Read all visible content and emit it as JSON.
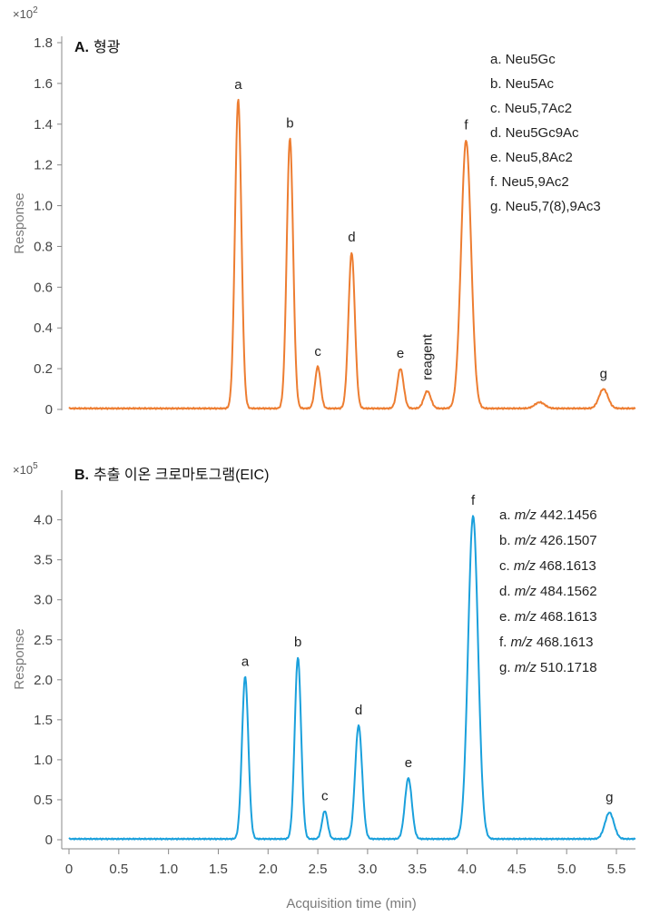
{
  "colors": {
    "panel_a_trace": "#ED7D31",
    "panel_b_trace": "#1AA0DC"
  },
  "chart_data": [
    {
      "type": "line",
      "panel_label": "A.",
      "panel_title": "형광",
      "ylabel": "Response",
      "y_multiplier": "×10",
      "y_multiplier_exp": "2",
      "ylim": [
        0,
        1.8
      ],
      "yticks": [
        0,
        0.2,
        0.4,
        0.6,
        0.8,
        1.0,
        1.2,
        1.4,
        1.6,
        1.8
      ],
      "ytick_labels": [
        "0",
        "0.2",
        "0.4",
        "0.6",
        "0.8",
        "1.0",
        "1.2",
        "1.4",
        "1.6",
        "1.8"
      ],
      "xlim": [
        -0.05,
        5.75
      ],
      "baseline": 0.005,
      "peaks": [
        {
          "label": "a",
          "x": 1.7,
          "y": 1.52,
          "width": 0.032
        },
        {
          "label": "b",
          "x": 2.22,
          "y": 1.33,
          "width": 0.032
        },
        {
          "label": "c",
          "x": 2.5,
          "y": 0.21,
          "width": 0.028
        },
        {
          "label": "d",
          "x": 2.84,
          "y": 0.77,
          "width": 0.032
        },
        {
          "label": "e",
          "x": 3.33,
          "y": 0.2,
          "width": 0.032
        },
        {
          "label": "reagent",
          "x": 3.6,
          "y": 0.09,
          "width": 0.035
        },
        {
          "label": "f",
          "x": 3.99,
          "y": 1.32,
          "width": 0.05
        },
        {
          "label": "",
          "x": 4.73,
          "y": 0.035,
          "width": 0.05
        },
        {
          "label": "g",
          "x": 5.37,
          "y": 0.1,
          "width": 0.045
        }
      ],
      "legend": [
        "a. Neu5Gc",
        "b. Neu5Ac",
        "c. Neu5,7Ac2",
        "d. Neu5Gc9Ac",
        "e. Neu5,8Ac2",
        "f. Neu5,9Ac2",
        "g. Neu5,7(8),9Ac3"
      ]
    },
    {
      "type": "line",
      "panel_label": "B.",
      "panel_title": "추출 이온 크로마토그램(EIC)",
      "ylabel": "Response",
      "y_multiplier": "×10",
      "y_multiplier_exp": "5",
      "ylim": [
        0,
        4.2
      ],
      "yticks": [
        0,
        0.5,
        1.0,
        1.5,
        2.0,
        2.5,
        3.0,
        3.5,
        4.0
      ],
      "ytick_labels": [
        "0",
        "0.5",
        "1.0",
        "1.5",
        "2.0",
        "2.5",
        "3.0",
        "3.5",
        "4.0"
      ],
      "xlim": [
        -0.05,
        5.75
      ],
      "xticks": [
        0,
        0.5,
        1.0,
        1.5,
        2.0,
        2.5,
        3.0,
        3.5,
        4.0,
        4.5,
        5.0,
        5.5
      ],
      "xtick_labels": [
        "0",
        "0.5",
        "1.0",
        "1.5",
        "2.0",
        "2.5",
        "3.0",
        "3.5",
        "4.0",
        "4.5",
        "5.0",
        "5.5"
      ],
      "xlabel": "Acquisition time (min)",
      "baseline": 0.01,
      "peaks": [
        {
          "label": "a",
          "x": 1.77,
          "y": 2.04,
          "width": 0.032
        },
        {
          "label": "b",
          "x": 2.3,
          "y": 2.28,
          "width": 0.032
        },
        {
          "label": "c",
          "x": 2.57,
          "y": 0.36,
          "width": 0.028
        },
        {
          "label": "d",
          "x": 2.91,
          "y": 1.43,
          "width": 0.035
        },
        {
          "label": "e",
          "x": 3.41,
          "y": 0.77,
          "width": 0.035
        },
        {
          "label": "f",
          "x": 4.06,
          "y": 4.05,
          "width": 0.05
        },
        {
          "label": "g",
          "x": 5.43,
          "y": 0.34,
          "width": 0.045
        }
      ],
      "legend": [
        {
          "prefix": "a. ",
          "mz": "m/z",
          "value": " 442.1456"
        },
        {
          "prefix": "b. ",
          "mz": "m/z",
          "value": " 426.1507"
        },
        {
          "prefix": "c. ",
          "mz": "m/z",
          "value": " 468.1613"
        },
        {
          "prefix": "d. ",
          "mz": "m/z",
          "value": " 484.1562"
        },
        {
          "prefix": "e. ",
          "mz": "m/z",
          "value": " 468.1613"
        },
        {
          "prefix": "f. ",
          "mz": "m/z",
          "value": " 468.1613"
        },
        {
          "prefix": "g. ",
          "mz": "m/z",
          "value": " 510.1718"
        }
      ]
    }
  ]
}
